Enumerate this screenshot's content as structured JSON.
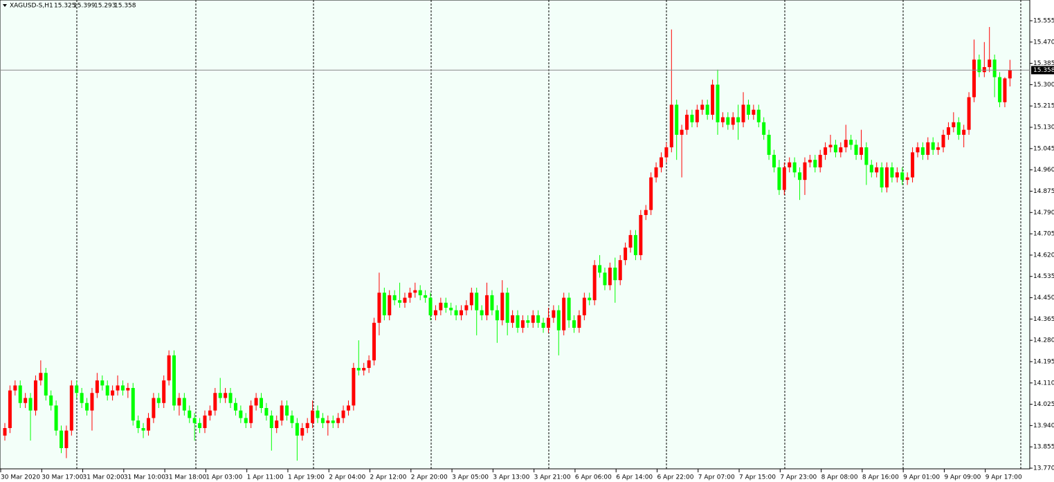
{
  "chart_data": {
    "type": "candlestick",
    "title": "XAGUSD-S,H1",
    "up_color": "#ff0000",
    "down_color": "#00ff00",
    "ylim": [
      13.77,
      15.555
    ],
    "yticks": [
      {
        "value": 13.77,
        "label": "13.770"
      },
      {
        "value": 13.855,
        "label": "13.855"
      },
      {
        "value": 13.94,
        "label": "13.940"
      },
      {
        "value": 14.025,
        "label": "14.025"
      },
      {
        "value": 14.11,
        "label": "14.110"
      },
      {
        "value": 14.195,
        "label": "14.195"
      },
      {
        "value": 14.28,
        "label": "14.280"
      },
      {
        "value": 14.365,
        "label": "14.365"
      },
      {
        "value": 14.45,
        "label": "14.450"
      },
      {
        "value": 14.535,
        "label": "14.535"
      },
      {
        "value": 14.62,
        "label": "14.620"
      },
      {
        "value": 14.705,
        "label": "14.705"
      },
      {
        "value": 14.79,
        "label": "14.790"
      },
      {
        "value": 14.875,
        "label": "14.875"
      },
      {
        "value": 14.96,
        "label": "14.960"
      },
      {
        "value": 15.045,
        "label": "15.045"
      },
      {
        "value": 15.13,
        "label": "15.130"
      },
      {
        "value": 15.215,
        "label": "15.215"
      },
      {
        "value": 15.3,
        "label": "15.300"
      },
      {
        "value": 15.385,
        "label": "15.385"
      },
      {
        "value": 15.47,
        "label": "15.470"
      },
      {
        "value": 15.555,
        "label": "15.555"
      }
    ],
    "categories": [
      "30 Mar 2020",
      null,
      null,
      null,
      null,
      null,
      null,
      null,
      "30 Mar 17:00",
      null,
      null,
      null,
      null,
      null,
      null,
      null,
      "31 Mar 02:00",
      null,
      null,
      null,
      null,
      null,
      null,
      null,
      "31 Mar 10:00",
      null,
      null,
      null,
      null,
      null,
      null,
      null,
      "31 Mar 18:00",
      null,
      null,
      null,
      null,
      null,
      null,
      null,
      "1 Apr 03:00",
      null,
      null,
      null,
      null,
      null,
      null,
      null,
      "1 Apr 11:00",
      null,
      null,
      null,
      null,
      null,
      null,
      null,
      "1 Apr 19:00",
      null,
      null,
      null,
      null,
      null,
      null,
      null,
      "2 Apr 04:00",
      null,
      null,
      null,
      null,
      null,
      null,
      null,
      "2 Apr 12:00",
      null,
      null,
      null,
      null,
      null,
      null,
      null,
      "2 Apr 20:00",
      null,
      null,
      null,
      null,
      null,
      null,
      null,
      "3 Apr 05:00",
      null,
      null,
      null,
      null,
      null,
      null,
      null,
      "3 Apr 13:00",
      null,
      null,
      null,
      null,
      null,
      null,
      null,
      "3 Apr 21:00",
      null,
      null,
      null,
      null,
      null,
      null,
      null,
      "6 Apr 06:00",
      null,
      null,
      null,
      null,
      null,
      null,
      null,
      "6 Apr 14:00",
      null,
      null,
      null,
      null,
      null,
      null,
      null,
      "6 Apr 22:00",
      null,
      null,
      null,
      null,
      null,
      null,
      null,
      "7 Apr 07:00",
      null,
      null,
      null,
      null,
      null,
      null,
      null,
      "7 Apr 15:00",
      null,
      null,
      null,
      null,
      null,
      null,
      null,
      "7 Apr 23:00",
      null,
      null,
      null,
      null,
      null,
      null,
      null,
      "8 Apr 08:00",
      null,
      null,
      null,
      null,
      null,
      null,
      null,
      "8 Apr 16:00",
      null,
      null,
      null,
      null,
      null,
      null,
      null,
      "9 Apr 01:00",
      null,
      null,
      null,
      null,
      null,
      null,
      null,
      "9 Apr 09:00",
      null,
      null,
      null,
      null,
      null,
      null,
      null,
      "9 Apr 17:00",
      null,
      null,
      null,
      null
    ],
    "candles": [
      [
        13.9,
        13.95,
        13.88,
        13.93
      ],
      [
        13.93,
        14.1,
        13.91,
        14.08
      ],
      [
        14.08,
        14.12,
        14.06,
        14.1
      ],
      [
        14.1,
        14.12,
        14.01,
        14.03
      ],
      [
        14.03,
        14.07,
        14.01,
        14.05
      ],
      [
        14.05,
        14.07,
        13.88,
        14.0
      ],
      [
        14.0,
        14.14,
        13.98,
        14.12
      ],
      [
        14.12,
        14.2,
        14.1,
        14.15
      ],
      [
        14.15,
        14.17,
        14.04,
        14.06
      ],
      [
        14.06,
        14.08,
        14.0,
        14.02
      ],
      [
        14.02,
        14.04,
        13.9,
        13.92
      ],
      [
        13.92,
        13.94,
        13.83,
        13.85
      ],
      [
        13.85,
        13.94,
        13.81,
        13.92
      ],
      [
        13.92,
        14.12,
        13.9,
        14.1
      ],
      [
        14.1,
        14.12,
        14.05,
        14.07
      ],
      [
        14.07,
        14.09,
        14.01,
        14.03
      ],
      [
        14.03,
        14.05,
        13.98,
        14.0
      ],
      [
        14.0,
        14.09,
        13.92,
        14.07
      ],
      [
        14.07,
        14.15,
        14.05,
        14.12
      ],
      [
        14.12,
        14.14,
        14.08,
        14.1
      ],
      [
        14.1,
        14.12,
        14.04,
        14.06
      ],
      [
        14.06,
        14.1,
        14.04,
        14.08
      ],
      [
        14.08,
        14.14,
        14.06,
        14.1
      ],
      [
        14.1,
        14.12,
        14.06,
        14.08
      ],
      [
        14.08,
        14.11,
        14.05,
        14.09
      ],
      [
        14.09,
        14.11,
        13.94,
        13.96
      ],
      [
        13.96,
        13.98,
        13.91,
        13.93
      ],
      [
        13.93,
        13.95,
        13.89,
        13.92
      ],
      [
        13.92,
        13.99,
        13.9,
        13.97
      ],
      [
        13.97,
        14.07,
        13.95,
        14.05
      ],
      [
        14.05,
        14.07,
        14.01,
        14.03
      ],
      [
        14.03,
        14.14,
        14.01,
        14.12
      ],
      [
        14.12,
        14.24,
        14.1,
        14.22
      ],
      [
        14.22,
        14.24,
        14.0,
        14.02
      ],
      [
        14.02,
        14.07,
        13.98,
        14.05
      ],
      [
        14.05,
        14.07,
        13.98,
        14.0
      ],
      [
        14.0,
        14.02,
        13.95,
        13.97
      ],
      [
        13.97,
        13.99,
        13.88,
        13.95
      ],
      [
        13.95,
        13.97,
        13.91,
        13.93
      ],
      [
        13.93,
        14.0,
        13.91,
        13.98
      ],
      [
        13.98,
        14.02,
        13.96,
        14.0
      ],
      [
        14.0,
        14.09,
        13.98,
        14.07
      ],
      [
        14.07,
        14.13,
        14.03,
        14.05
      ],
      [
        14.05,
        14.09,
        14.03,
        14.07
      ],
      [
        14.07,
        14.09,
        14.01,
        14.03
      ],
      [
        14.03,
        14.05,
        13.98,
        14.0
      ],
      [
        14.0,
        14.02,
        13.95,
        13.97
      ],
      [
        13.97,
        13.99,
        13.93,
        13.95
      ],
      [
        13.95,
        14.04,
        13.93,
        14.02
      ],
      [
        14.02,
        14.07,
        14.0,
        14.05
      ],
      [
        14.05,
        14.07,
        13.99,
        14.01
      ],
      [
        14.01,
        14.03,
        13.96,
        13.98
      ],
      [
        13.98,
        14.0,
        13.84,
        13.93
      ],
      [
        13.93,
        13.98,
        13.91,
        13.96
      ],
      [
        13.96,
        14.04,
        13.94,
        14.02
      ],
      [
        14.02,
        14.04,
        13.96,
        13.98
      ],
      [
        13.98,
        14.0,
        13.93,
        13.95
      ],
      [
        13.95,
        13.97,
        13.8,
        13.9
      ],
      [
        13.9,
        13.95,
        13.88,
        13.93
      ],
      [
        13.93,
        13.97,
        13.91,
        13.95
      ],
      [
        13.95,
        14.04,
        13.93,
        14.0
      ],
      [
        14.0,
        14.02,
        13.95,
        13.97
      ],
      [
        13.97,
        13.99,
        13.93,
        13.95
      ],
      [
        13.95,
        13.98,
        13.9,
        13.96
      ],
      [
        13.96,
        13.98,
        13.93,
        13.95
      ],
      [
        13.95,
        13.99,
        13.93,
        13.97
      ],
      [
        13.97,
        14.02,
        13.95,
        14.0
      ],
      [
        14.0,
        14.04,
        13.98,
        14.02
      ],
      [
        14.02,
        14.19,
        14.0,
        14.17
      ],
      [
        14.17,
        14.28,
        14.14,
        14.16
      ],
      [
        14.16,
        14.19,
        14.14,
        14.17
      ],
      [
        14.17,
        14.22,
        14.15,
        14.2
      ],
      [
        14.2,
        14.37,
        14.18,
        14.35
      ],
      [
        14.35,
        14.55,
        14.3,
        14.47
      ],
      [
        14.47,
        14.49,
        14.36,
        14.38
      ],
      [
        14.38,
        14.48,
        14.36,
        14.46
      ],
      [
        14.46,
        14.48,
        14.42,
        14.44
      ],
      [
        14.44,
        14.51,
        14.41,
        14.43
      ],
      [
        14.43,
        14.47,
        14.41,
        14.45
      ],
      [
        14.45,
        14.49,
        14.43,
        14.47
      ],
      [
        14.47,
        14.51,
        14.45,
        14.48
      ],
      [
        14.48,
        14.5,
        14.44,
        14.46
      ],
      [
        14.46,
        14.48,
        14.43,
        14.45
      ],
      [
        14.45,
        14.47,
        14.36,
        14.38
      ],
      [
        14.38,
        14.42,
        14.36,
        14.4
      ],
      [
        14.4,
        14.45,
        14.38,
        14.43
      ],
      [
        14.43,
        14.45,
        14.39,
        14.41
      ],
      [
        14.41,
        14.43,
        14.38,
        14.4
      ],
      [
        14.4,
        14.42,
        14.36,
        14.38
      ],
      [
        14.38,
        14.42,
        14.36,
        14.4
      ],
      [
        14.4,
        14.44,
        14.38,
        14.42
      ],
      [
        14.42,
        14.49,
        14.4,
        14.47
      ],
      [
        14.47,
        14.49,
        14.3,
        14.4
      ],
      [
        14.4,
        14.42,
        14.36,
        14.38
      ],
      [
        14.38,
        14.51,
        14.36,
        14.46
      ],
      [
        14.46,
        14.48,
        14.38,
        14.4
      ],
      [
        14.4,
        14.42,
        14.27,
        14.36
      ],
      [
        14.36,
        14.52,
        14.34,
        14.47
      ],
      [
        14.47,
        14.49,
        14.3,
        14.35
      ],
      [
        14.35,
        14.4,
        14.33,
        14.38
      ],
      [
        14.38,
        14.4,
        14.31,
        14.33
      ],
      [
        14.33,
        14.38,
        14.31,
        14.36
      ],
      [
        14.36,
        14.38,
        14.33,
        14.35
      ],
      [
        14.35,
        14.4,
        14.33,
        14.38
      ],
      [
        14.38,
        14.4,
        14.33,
        14.35
      ],
      [
        14.35,
        14.37,
        14.31,
        14.33
      ],
      [
        14.33,
        14.41,
        14.31,
        14.37
      ],
      [
        14.37,
        14.42,
        14.35,
        14.4
      ],
      [
        14.4,
        14.42,
        14.22,
        14.32
      ],
      [
        14.32,
        14.47,
        14.3,
        14.45
      ],
      [
        14.45,
        14.47,
        14.33,
        14.36
      ],
      [
        14.36,
        14.38,
        14.31,
        14.33
      ],
      [
        14.33,
        14.4,
        14.31,
        14.38
      ],
      [
        14.38,
        14.47,
        14.36,
        14.45
      ],
      [
        14.45,
        14.47,
        14.42,
        14.44
      ],
      [
        14.44,
        14.6,
        14.42,
        14.58
      ],
      [
        14.58,
        14.62,
        14.53,
        14.55
      ],
      [
        14.55,
        14.57,
        14.48,
        14.5
      ],
      [
        14.5,
        14.59,
        14.48,
        14.57
      ],
      [
        14.57,
        14.61,
        14.43,
        14.52
      ],
      [
        14.52,
        14.62,
        14.5,
        14.6
      ],
      [
        14.6,
        14.67,
        14.58,
        14.65
      ],
      [
        14.65,
        14.72,
        14.63,
        14.7
      ],
      [
        14.7,
        14.72,
        14.6,
        14.62
      ],
      [
        14.62,
        14.8,
        14.6,
        14.78
      ],
      [
        14.78,
        14.82,
        14.76,
        14.8
      ],
      [
        14.8,
        14.95,
        14.78,
        14.93
      ],
      [
        14.93,
        14.99,
        14.91,
        14.97
      ],
      [
        14.97,
        15.03,
        14.95,
        15.01
      ],
      [
        15.01,
        15.07,
        14.99,
        15.05
      ],
      [
        15.05,
        15.52,
        15.03,
        15.22
      ],
      [
        15.22,
        15.24,
        15.0,
        15.1
      ],
      [
        15.1,
        15.14,
        14.93,
        15.12
      ],
      [
        15.12,
        15.2,
        15.1,
        15.18
      ],
      [
        15.18,
        15.2,
        15.13,
        15.15
      ],
      [
        15.15,
        15.22,
        15.13,
        15.2
      ],
      [
        15.2,
        15.24,
        15.18,
        15.22
      ],
      [
        15.22,
        15.24,
        15.16,
        15.18
      ],
      [
        15.18,
        15.32,
        15.16,
        15.3
      ],
      [
        15.3,
        15.36,
        15.1,
        15.15
      ],
      [
        15.15,
        15.19,
        15.13,
        15.17
      ],
      [
        15.17,
        15.19,
        15.12,
        15.14
      ],
      [
        15.14,
        15.19,
        15.12,
        15.17
      ],
      [
        15.17,
        15.22,
        15.08,
        15.15
      ],
      [
        15.15,
        15.27,
        15.13,
        15.22
      ],
      [
        15.22,
        15.24,
        15.16,
        15.18
      ],
      [
        15.18,
        15.22,
        15.16,
        15.2
      ],
      [
        15.2,
        15.22,
        15.13,
        15.15
      ],
      [
        15.15,
        15.17,
        15.08,
        15.1
      ],
      [
        15.1,
        15.12,
        15.0,
        15.02
      ],
      [
        15.02,
        15.04,
        14.95,
        14.97
      ],
      [
        14.97,
        15.0,
        14.86,
        14.88
      ],
      [
        14.88,
        14.99,
        14.86,
        14.97
      ],
      [
        14.97,
        15.01,
        14.95,
        14.99
      ],
      [
        14.99,
        15.01,
        14.93,
        14.95
      ],
      [
        14.95,
        14.97,
        14.84,
        14.92
      ],
      [
        14.92,
        15.01,
        14.86,
        14.99
      ],
      [
        14.99,
        15.02,
        14.97,
        15.0
      ],
      [
        15.0,
        15.02,
        14.95,
        14.97
      ],
      [
        14.97,
        15.04,
        14.95,
        15.02
      ],
      [
        15.02,
        15.07,
        15.0,
        15.05
      ],
      [
        15.05,
        15.1,
        15.03,
        15.06
      ],
      [
        15.06,
        15.08,
        15.01,
        15.03
      ],
      [
        15.03,
        15.07,
        15.01,
        15.05
      ],
      [
        15.05,
        15.14,
        15.03,
        15.08
      ],
      [
        15.08,
        15.1,
        15.04,
        15.06
      ],
      [
        15.06,
        15.08,
        15.0,
        15.02
      ],
      [
        15.02,
        15.12,
        15.0,
        15.05
      ],
      [
        15.05,
        15.07,
        14.9,
        14.98
      ],
      [
        14.98,
        15.0,
        14.93,
        14.95
      ],
      [
        14.95,
        14.99,
        14.93,
        14.97
      ],
      [
        14.97,
        14.99,
        14.87,
        14.89
      ],
      [
        14.89,
        14.99,
        14.87,
        14.97
      ],
      [
        14.97,
        14.99,
        14.91,
        14.93
      ],
      [
        14.93,
        14.97,
        14.91,
        14.95
      ],
      [
        14.95,
        14.97,
        14.9,
        14.92
      ],
      [
        14.92,
        14.95,
        14.9,
        14.93
      ],
      [
        14.93,
        15.05,
        14.91,
        15.03
      ],
      [
        15.03,
        15.07,
        15.01,
        15.05
      ],
      [
        15.05,
        15.07,
        15.0,
        15.02
      ],
      [
        15.02,
        15.09,
        15.0,
        15.07
      ],
      [
        15.07,
        15.09,
        15.02,
        15.04
      ],
      [
        15.04,
        15.07,
        15.02,
        15.05
      ],
      [
        15.05,
        15.12,
        15.03,
        15.1
      ],
      [
        15.1,
        15.15,
        15.08,
        15.13
      ],
      [
        15.13,
        15.19,
        15.11,
        15.15
      ],
      [
        15.15,
        15.17,
        15.08,
        15.1
      ],
      [
        15.1,
        15.14,
        15.05,
        15.12
      ],
      [
        15.12,
        15.27,
        15.1,
        15.25
      ],
      [
        15.25,
        15.48,
        15.23,
        15.4
      ],
      [
        15.4,
        15.42,
        15.33,
        15.35
      ],
      [
        15.35,
        15.47,
        15.33,
        15.37
      ],
      [
        15.37,
        15.53,
        15.35,
        15.4
      ],
      [
        15.4,
        15.42,
        15.25,
        15.33
      ],
      [
        15.33,
        15.35,
        15.21,
        15.23
      ],
      [
        15.23,
        15.33,
        15.21,
        15.325
      ],
      [
        15.325,
        15.399,
        15.293,
        15.358
      ]
    ]
  }
}
